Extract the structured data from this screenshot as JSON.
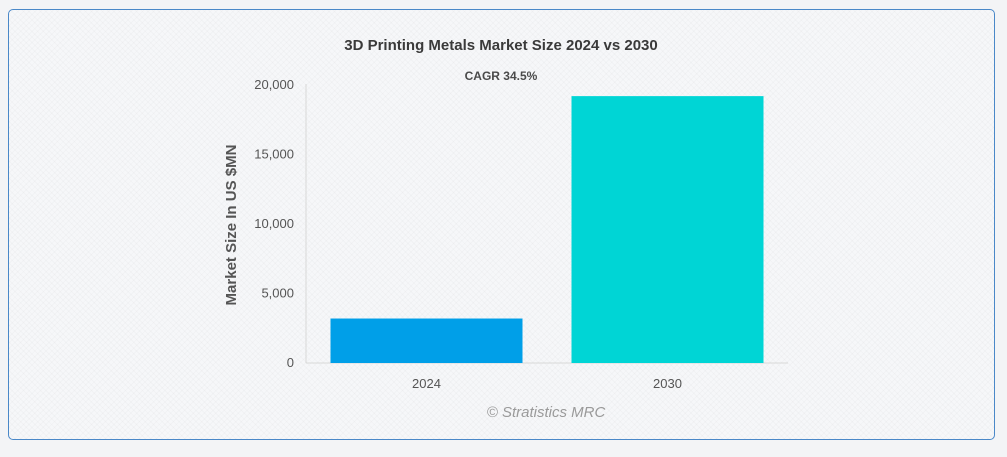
{
  "chart_data": {
    "type": "bar",
    "title": "3D Printing Metals Market Size 2024 vs 2030",
    "annotation": "CAGR 34.5%",
    "ylabel": "Market Size In US $MN",
    "xlabel": "",
    "categories": [
      "2024",
      "2030"
    ],
    "values": [
      3200,
      19200
    ],
    "colors": [
      "#009fe8",
      "#00d5d5"
    ],
    "ylim": [
      0,
      20000
    ],
    "yticks": [
      0,
      5000,
      10000,
      15000,
      20000
    ],
    "ytick_labels": [
      "0",
      "5,000",
      "10,000",
      "15,000",
      "20,000"
    ],
    "grid": false,
    "legend": "none",
    "watermark": "© Stratistics MRC"
  }
}
